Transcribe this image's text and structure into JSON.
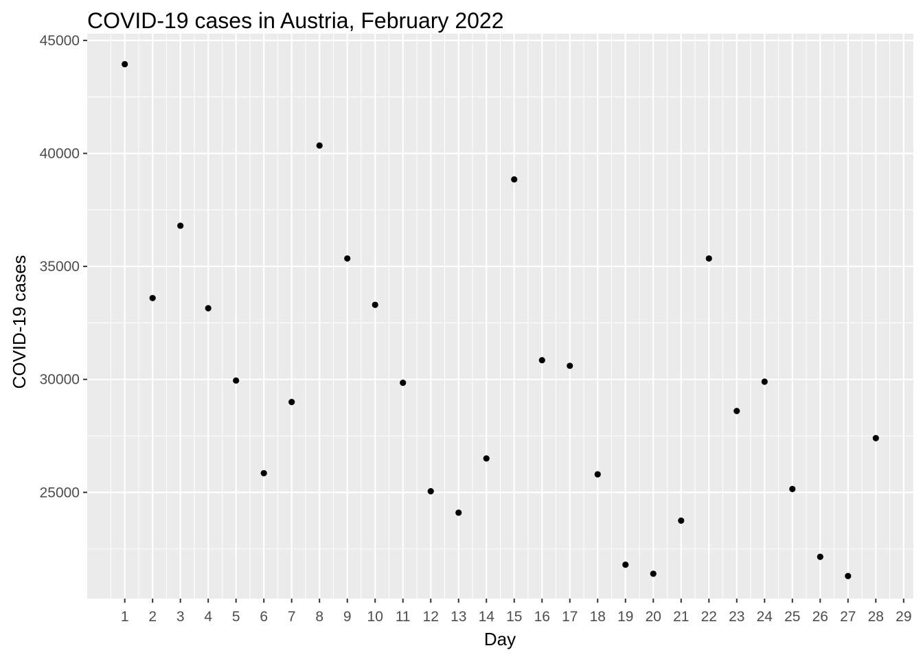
{
  "chart_data": {
    "type": "scatter",
    "title": "COVID-19 cases in Austria, February 2022",
    "xlabel": "Day",
    "ylabel": "COVID-19 cases",
    "x_ticks": [
      1,
      2,
      3,
      4,
      5,
      6,
      7,
      8,
      9,
      10,
      11,
      12,
      13,
      14,
      15,
      16,
      17,
      18,
      19,
      20,
      21,
      22,
      23,
      24,
      25,
      26,
      27,
      28,
      29
    ],
    "y_ticks": [
      25000,
      30000,
      35000,
      40000,
      45000
    ],
    "x_range": [
      -0.35,
      29.35
    ],
    "y_range": [
      20300,
      45300
    ],
    "grid": true,
    "panel_color": "#ebebeb",
    "grid_color": "#ffffff",
    "point_color": "#000000",
    "points": [
      {
        "x": 1,
        "y": 43950
      },
      {
        "x": 2,
        "y": 33600
      },
      {
        "x": 3,
        "y": 36800
      },
      {
        "x": 4,
        "y": 33150
      },
      {
        "x": 5,
        "y": 29950
      },
      {
        "x": 6,
        "y": 25850
      },
      {
        "x": 7,
        "y": 29000
      },
      {
        "x": 8,
        "y": 40350
      },
      {
        "x": 9,
        "y": 35350
      },
      {
        "x": 10,
        "y": 33300
      },
      {
        "x": 11,
        "y": 29850
      },
      {
        "x": 12,
        "y": 25050
      },
      {
        "x": 13,
        "y": 24100
      },
      {
        "x": 14,
        "y": 26500
      },
      {
        "x": 15,
        "y": 38850
      },
      {
        "x": 16,
        "y": 30850
      },
      {
        "x": 17,
        "y": 30600
      },
      {
        "x": 18,
        "y": 25800
      },
      {
        "x": 19,
        "y": 21800
      },
      {
        "x": 20,
        "y": 21400
      },
      {
        "x": 21,
        "y": 23750
      },
      {
        "x": 22,
        "y": 35350
      },
      {
        "x": 23,
        "y": 28600
      },
      {
        "x": 24,
        "y": 29900
      },
      {
        "x": 25,
        "y": 25150
      },
      {
        "x": 26,
        "y": 22150
      },
      {
        "x": 27,
        "y": 21300
      },
      {
        "x": 28,
        "y": 27400
      }
    ]
  }
}
